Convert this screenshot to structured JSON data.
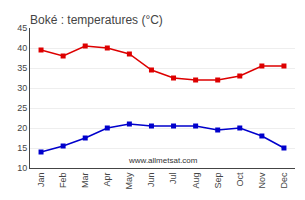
{
  "chart_data": {
    "type": "line",
    "title": "Boké : temperatures (°C)",
    "categories": [
      "Jan",
      "Feb",
      "Mar",
      "Apr",
      "May",
      "Jun",
      "Jul",
      "Aug",
      "Sep",
      "Oct",
      "Nov",
      "Dec"
    ],
    "series": [
      {
        "color": "#dd0000",
        "values": [
          39.5,
          38.0,
          40.5,
          40.0,
          38.5,
          34.5,
          32.5,
          32.0,
          32.0,
          33.0,
          35.5,
          35.5
        ]
      },
      {
        "color": "#0000cc",
        "values": [
          14.0,
          15.5,
          17.5,
          20.0,
          21.0,
          20.5,
          20.5,
          20.5,
          19.5,
          20.0,
          18.0,
          15.0
        ]
      }
    ],
    "marker": "square",
    "ylim": [
      10,
      45
    ],
    "yticks": [
      10,
      15,
      20,
      25,
      30,
      35,
      40,
      45
    ],
    "grid": true,
    "annotations": [
      "www.allmetsat.com"
    ]
  }
}
